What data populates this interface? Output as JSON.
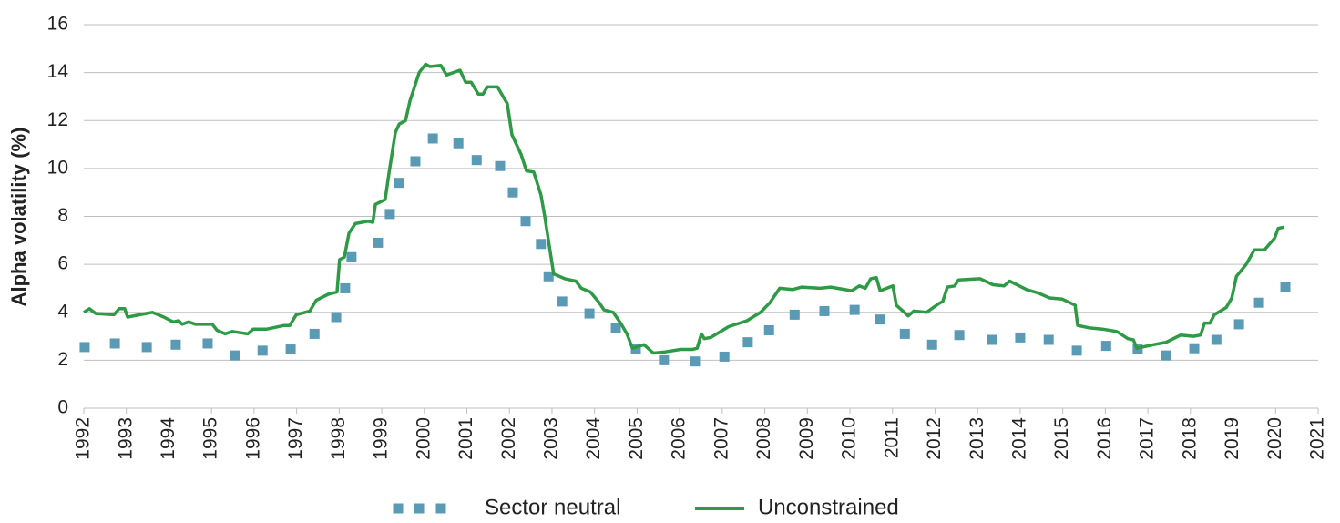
{
  "chart_data": {
    "type": "line",
    "y_label": "Alpha volatility (%)",
    "xlim": [
      1992,
      2021
    ],
    "ylim": [
      0,
      16
    ],
    "xticks": [
      1992,
      1993,
      1994,
      1995,
      1996,
      1997,
      1998,
      1999,
      2000,
      2001,
      2002,
      2003,
      2004,
      2005,
      2006,
      2007,
      2008,
      2009,
      2010,
      2011,
      2012,
      2013,
      2014,
      2015,
      2016,
      2017,
      2018,
      2019,
      2020,
      2021
    ],
    "yticks": [
      0,
      2,
      4,
      6,
      8,
      10,
      12,
      14,
      16
    ],
    "grid": true,
    "legend": "bottom",
    "series": [
      {
        "name": "Sector neutral",
        "color": "#5b9ab5",
        "marker": "square",
        "x": [
          1992.02,
          1992.73,
          1993.48,
          1994.16,
          1994.91,
          1995.55,
          1996.2,
          1996.86,
          1997.42,
          1997.93,
          1998.14,
          1998.29,
          1998.91,
          1999.19,
          1999.41,
          1999.79,
          2000.2,
          2000.8,
          2001.23,
          2001.78,
          2002.08,
          2002.38,
          2002.74,
          2002.92,
          2003.24,
          2003.88,
          2004.5,
          2004.97,
          2005.63,
          2006.36,
          2007.05,
          2007.6,
          2008.1,
          2008.7,
          2009.4,
          2010.11,
          2010.71,
          2011.29,
          2011.93,
          2012.57,
          2013.34,
          2014.0,
          2014.67,
          2015.33,
          2016.02,
          2016.76,
          2017.43,
          2018.09,
          2018.61,
          2019.14,
          2019.61,
          2020.23
        ],
        "values": [
          2.55,
          2.7,
          2.55,
          2.65,
          2.7,
          2.2,
          2.4,
          2.45,
          3.1,
          3.8,
          5.0,
          6.3,
          6.9,
          8.1,
          9.4,
          10.3,
          11.25,
          11.05,
          10.35,
          10.1,
          9.0,
          7.8,
          6.85,
          5.5,
          4.45,
          3.95,
          3.35,
          2.45,
          2.0,
          1.95,
          2.15,
          2.75,
          3.25,
          3.9,
          4.05,
          4.1,
          3.7,
          3.1,
          2.65,
          3.05,
          2.85,
          2.95,
          2.85,
          2.4,
          2.6,
          2.45,
          2.2,
          2.5,
          2.85,
          3.5,
          4.4,
          5.05
        ]
      },
      {
        "name": "Unconstrained",
        "color": "#2e9a45",
        "marker": "line",
        "x": [
          1992.0,
          1992.13,
          1992.28,
          1992.71,
          1992.83,
          1992.96,
          1993.03,
          1993.46,
          1993.61,
          1993.88,
          1994.1,
          1994.23,
          1994.31,
          1994.46,
          1994.63,
          1995.02,
          1995.13,
          1995.32,
          1995.49,
          1995.85,
          1995.98,
          1996.3,
          1996.71,
          1996.84,
          1996.99,
          1997.31,
          1997.46,
          1997.74,
          1997.95,
          1998.01,
          1998.12,
          1998.23,
          1998.38,
          1998.68,
          1998.79,
          1998.85,
          1999.08,
          1999.17,
          1999.32,
          1999.41,
          1999.56,
          1999.66,
          1999.88,
          2000.03,
          2000.13,
          2000.39,
          2000.52,
          2000.84,
          2000.97,
          2001.1,
          2001.27,
          2001.38,
          2001.48,
          2001.72,
          2001.85,
          2001.95,
          2002.06,
          2002.27,
          2002.4,
          2002.57,
          2002.74,
          2002.83,
          2002.96,
          2003.04,
          2003.3,
          2003.56,
          2003.69,
          2003.9,
          2004.11,
          2004.22,
          2004.44,
          2004.63,
          2004.76,
          2004.89,
          2005.16,
          2005.38,
          2005.66,
          2006.02,
          2006.3,
          2006.41,
          2006.51,
          2006.58,
          2006.73,
          2007.15,
          2007.58,
          2007.9,
          2008.12,
          2008.35,
          2008.65,
          2008.87,
          2009.29,
          2009.55,
          2010.04,
          2010.22,
          2010.36,
          2010.49,
          2010.62,
          2010.71,
          2011.01,
          2011.09,
          2011.37,
          2011.5,
          2011.8,
          2012.08,
          2012.18,
          2012.29,
          2012.46,
          2012.55,
          2013.06,
          2013.36,
          2013.62,
          2013.75,
          2014.15,
          2014.43,
          2014.69,
          2014.99,
          2015.29,
          2015.35,
          2015.63,
          2015.93,
          2016.27,
          2016.53,
          2016.66,
          2016.74,
          2017.13,
          2017.43,
          2017.77,
          2018.07,
          2018.24,
          2018.33,
          2018.46,
          2018.56,
          2018.84,
          2018.97,
          2019.08,
          2019.31,
          2019.5,
          2019.74,
          2019.98,
          2020.06,
          2020.19
        ],
        "values": [
          4.0,
          4.15,
          3.95,
          3.9,
          4.15,
          4.15,
          3.8,
          3.95,
          4.0,
          3.8,
          3.6,
          3.65,
          3.5,
          3.6,
          3.5,
          3.5,
          3.25,
          3.1,
          3.2,
          3.1,
          3.3,
          3.3,
          3.45,
          3.45,
          3.9,
          4.05,
          4.5,
          4.75,
          4.85,
          6.2,
          6.3,
          7.3,
          7.7,
          7.8,
          7.75,
          8.5,
          8.7,
          9.8,
          11.5,
          11.85,
          12.0,
          12.8,
          14.0,
          14.35,
          14.25,
          14.3,
          13.9,
          14.1,
          13.6,
          13.6,
          13.1,
          13.1,
          13.4,
          13.4,
          13.0,
          12.7,
          11.4,
          10.6,
          9.9,
          9.85,
          8.9,
          8.0,
          6.5,
          5.6,
          5.4,
          5.3,
          5.0,
          4.85,
          4.4,
          4.1,
          4.0,
          3.5,
          3.1,
          2.5,
          2.65,
          2.3,
          2.35,
          2.45,
          2.45,
          2.5,
          3.1,
          2.9,
          2.95,
          3.4,
          3.65,
          4.0,
          4.4,
          5.0,
          4.95,
          5.05,
          5.0,
          5.05,
          4.9,
          5.1,
          5.0,
          5.4,
          5.45,
          4.9,
          5.1,
          4.3,
          3.85,
          4.05,
          4.0,
          4.35,
          4.45,
          5.05,
          5.1,
          5.35,
          5.4,
          5.15,
          5.1,
          5.3,
          4.95,
          4.8,
          4.6,
          4.55,
          4.3,
          3.45,
          3.35,
          3.3,
          3.2,
          2.9,
          2.85,
          2.5,
          2.65,
          2.75,
          3.05,
          3.0,
          3.05,
          3.55,
          3.55,
          3.9,
          4.2,
          4.6,
          5.5,
          6.0,
          6.6,
          6.6,
          7.1,
          7.5,
          7.55
        ]
      }
    ]
  }
}
